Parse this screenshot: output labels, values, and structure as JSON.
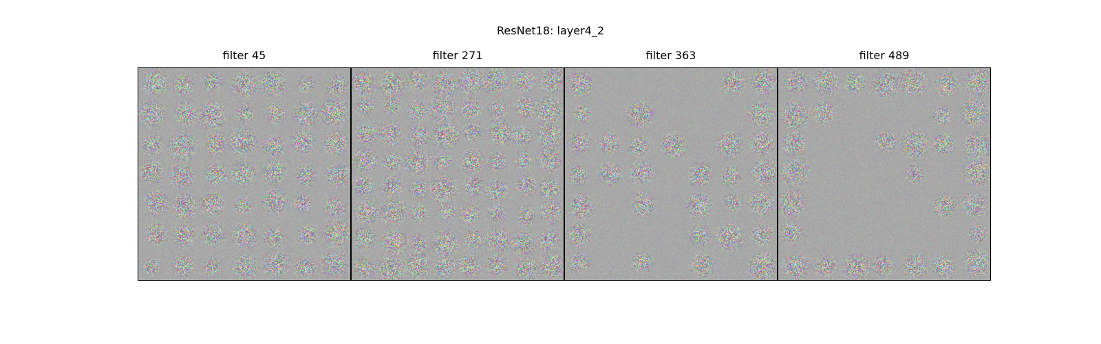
{
  "figure": {
    "title": "ResNet18: layer4_2"
  },
  "panels": [
    {
      "title": "filter 45",
      "pattern": "grid",
      "rows": 7,
      "cols": 7
    },
    {
      "title": "filter 271",
      "pattern": "grid",
      "rows": 8,
      "cols": 8
    },
    {
      "title": "filter 363",
      "pattern": "sparse",
      "rows": 7,
      "cols": 7
    },
    {
      "title": "filter 489",
      "pattern": "border",
      "rows": 7,
      "cols": 7
    }
  ],
  "colors": {
    "background_gray": "#a8a8a8",
    "frame": "#000000"
  }
}
